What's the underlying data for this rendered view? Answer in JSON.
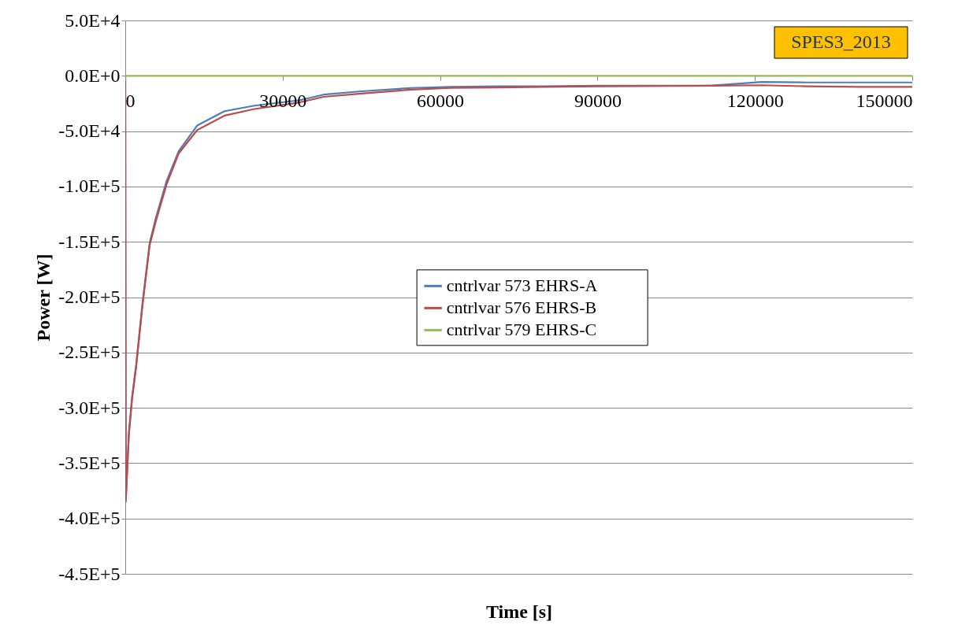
{
  "chart_data": {
    "type": "line",
    "xlabel": "Time [s]",
    "ylabel": "Power [W]",
    "annotations": [
      "SPES3_2013"
    ],
    "x": [
      0,
      100,
      680,
      1300,
      2100,
      3270,
      4650,
      5850,
      7880,
      10200,
      13700,
      18900,
      24600,
      33300,
      37800,
      45000,
      54500,
      62000,
      71200,
      80000,
      90000,
      104500,
      112000,
      121300,
      130000,
      140000,
      150000
    ],
    "series": [
      {
        "name": "cntrlvar      573      EHRS-A",
        "color": "#4a7ebb",
        "values": [
          0,
          -385000,
          -323000,
          -290000,
          -260000,
          -206000,
          -151000,
          -128000,
          -95000,
          -68000,
          -45000,
          -32000,
          -27000,
          -22000,
          -17000,
          -14000,
          -11000,
          -10000,
          -9500,
          -9500,
          -9000,
          -9000,
          -8800,
          -5500,
          -6000,
          -6000,
          -6000
        ]
      },
      {
        "name": "cntrlvar      576      EHRS-B",
        "color": "#be4b48",
        "values": [
          0,
          -383000,
          -325000,
          -292000,
          -262000,
          -208000,
          -153000,
          -131000,
          -98000,
          -70000,
          -49000,
          -36000,
          -30000,
          -24000,
          -19000,
          -16000,
          -12500,
          -11000,
          -10500,
          -10000,
          -9500,
          -9200,
          -9000,
          -8500,
          -9500,
          -10000,
          -10000
        ]
      },
      {
        "name": "cntrlvar      579      EHRS-C",
        "color": "#98b954",
        "values": [
          0,
          0,
          0,
          0,
          0,
          0,
          0,
          0,
          0,
          0,
          0,
          0,
          0,
          0,
          0,
          0,
          0,
          0,
          0,
          0,
          0,
          0,
          0,
          0,
          0,
          0,
          0
        ]
      }
    ],
    "xlim": [
      0,
      150000
    ],
    "xticks": [
      0,
      30000,
      60000,
      90000,
      120000,
      150000
    ],
    "ylim": [
      -450000,
      50000
    ],
    "yticks": [
      {
        "value": 50000,
        "label": "5.0E+4"
      },
      {
        "value": 0,
        "label": "0.0E+0"
      },
      {
        "value": -50000,
        "label": "-5.0E+4"
      },
      {
        "value": -100000,
        "label": "-1.0E+5"
      },
      {
        "value": -150000,
        "label": "-1.5E+5"
      },
      {
        "value": -200000,
        "label": "-2.0E+5"
      },
      {
        "value": -250000,
        "label": "-2.5E+5"
      },
      {
        "value": -300000,
        "label": "-3.0E+5"
      },
      {
        "value": -350000,
        "label": "-3.5E+5"
      },
      {
        "value": -400000,
        "label": "-4.0E+5"
      },
      {
        "value": -450000,
        "label": "-4.5E+5"
      }
    ],
    "grid": "y",
    "legend": "right"
  }
}
